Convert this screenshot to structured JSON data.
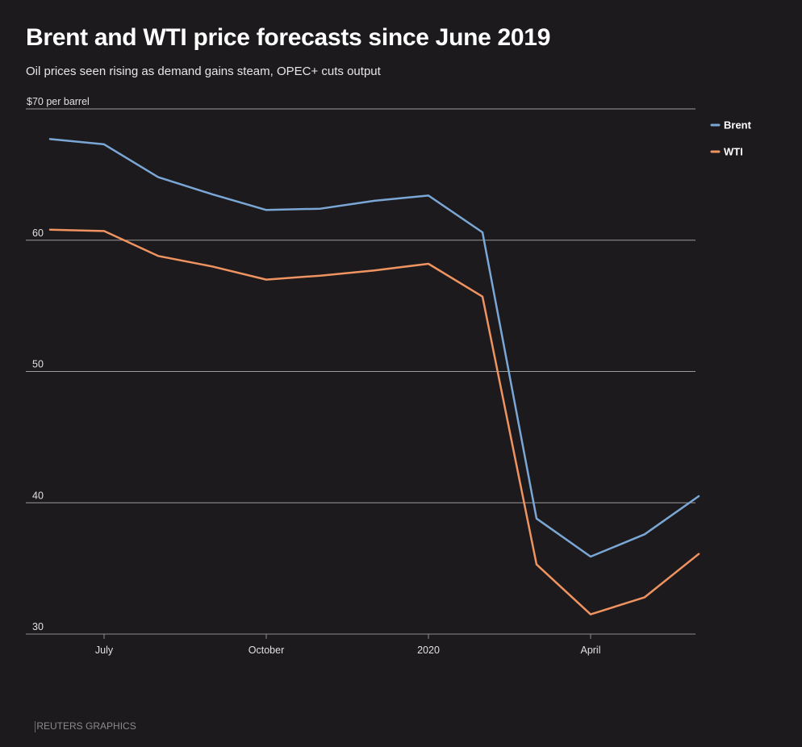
{
  "header": {
    "title": "Brent and WTI price forecasts since June 2019",
    "subtitle": "Oil prices seen rising as demand gains steam, OPEC+ cuts output"
  },
  "footer": {
    "source": "REUTERS GRAPHICS"
  },
  "colors": {
    "background": "#1c1a1d",
    "brent": "#7ba7d6",
    "wti": "#ef9361",
    "gridline": "#9a9a9a"
  },
  "chart_data": {
    "type": "line",
    "title": "Brent and WTI price forecasts since June 2019",
    "subtitle": "Oil prices seen rising as demand gains steam, OPEC+ cuts output",
    "ylabel": "$70 per barrel",
    "ylim": [
      30,
      70
    ],
    "yticks": [
      30,
      40,
      50,
      60,
      70
    ],
    "ytick_labels": [
      "30",
      "40",
      "50",
      "60",
      "$70 per barrel"
    ],
    "xlim": [
      0,
      12.67
    ],
    "xticks": [
      {
        "x": 1,
        "label": "July"
      },
      {
        "x": 4,
        "label": "October"
      },
      {
        "x": 7,
        "label": "2020"
      },
      {
        "x": 10,
        "label": "April"
      }
    ],
    "x": [
      0,
      1,
      2,
      3,
      4,
      5,
      6,
      7,
      8,
      9,
      10,
      11,
      12
    ],
    "series": [
      {
        "name": "Brent",
        "values": [
          67.7,
          67.3,
          64.8,
          63.5,
          62.3,
          62.4,
          63.0,
          63.4,
          60.6,
          38.8,
          35.9,
          37.6,
          40.5
        ]
      },
      {
        "name": "WTI",
        "values": [
          60.8,
          60.7,
          58.8,
          58.0,
          57.0,
          57.3,
          57.7,
          58.2,
          55.7,
          35.3,
          31.5,
          32.8,
          36.1
        ]
      }
    ],
    "grid": true,
    "legend_position": "top-right"
  }
}
